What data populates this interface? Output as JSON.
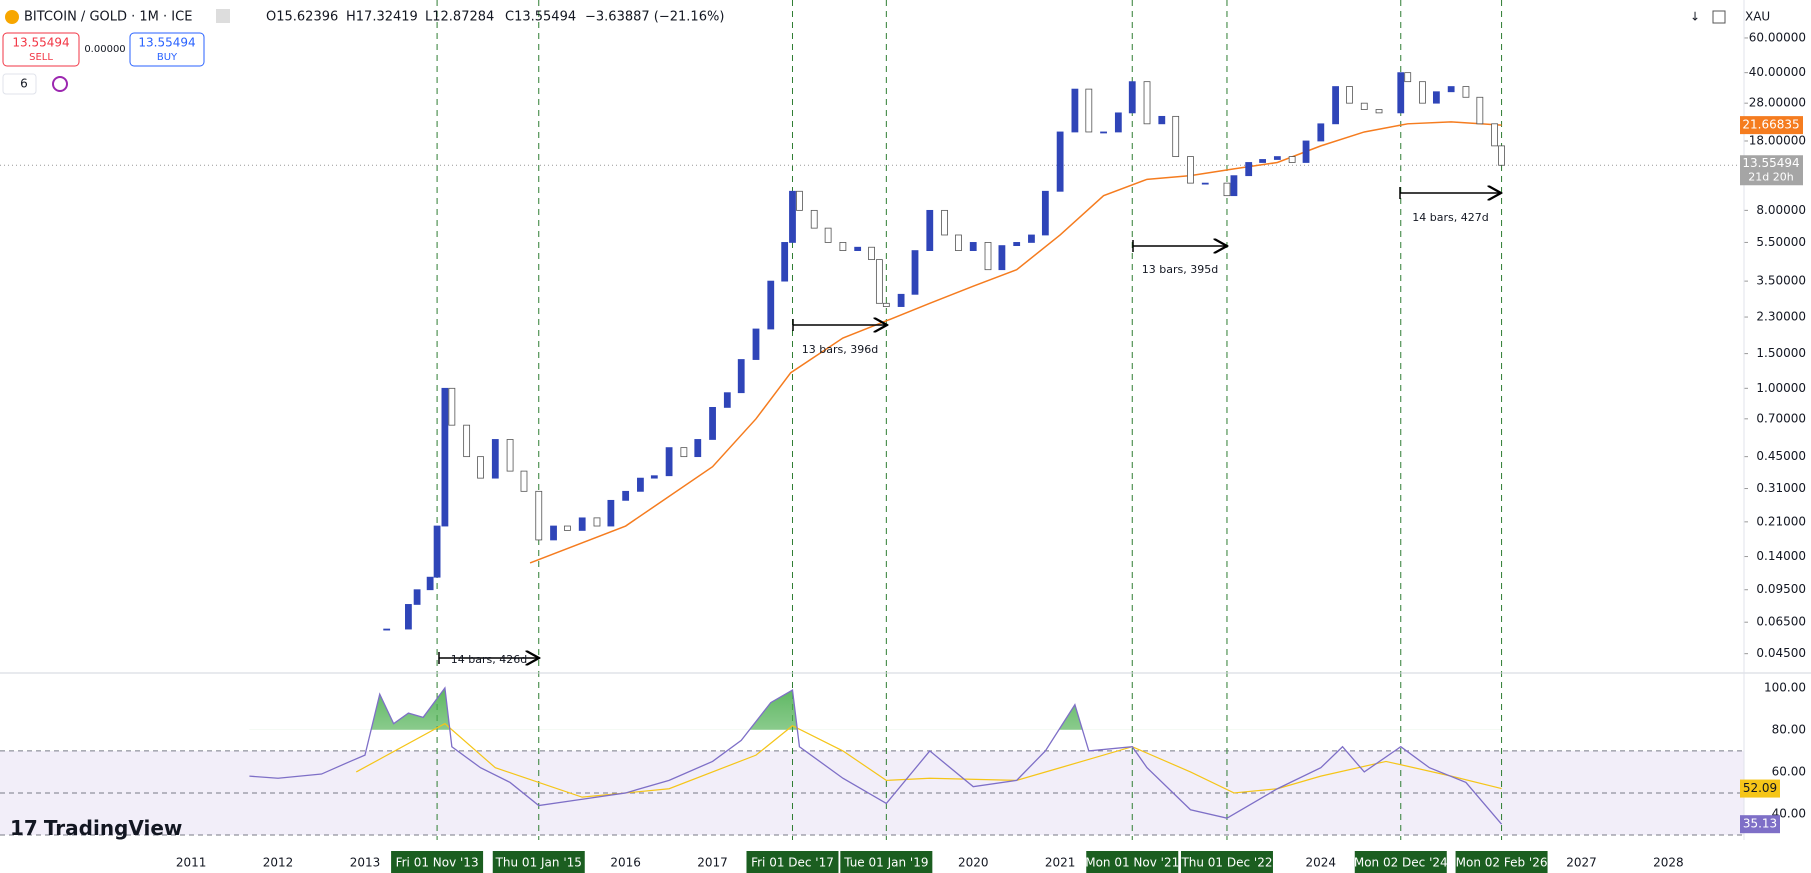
{
  "header": {
    "symbol": "BITCOIN / GOLD · 1M · ICE",
    "open": "O15.62396",
    "high": "H17.32419",
    "low": "L12.87284",
    "close": "C13.55494",
    "change": "−3.63887 (−21.16%)",
    "sell_price": "13.55494",
    "sell": "SELL",
    "spread": "0.00000",
    "buy_price": "13.55494",
    "buy": "BUY",
    "indicators": "6",
    "currency": "XAU",
    "logo": "TradingView"
  },
  "chart_data": {
    "type": "candlestick",
    "log": true,
    "xlim": [
      2008.8,
      2028.87
    ],
    "ylim": [
      0.0359,
      93.5
    ],
    "x": [
      2013.25,
      2013.5,
      2013.6,
      2013.75,
      2013.83,
      2013.92,
      2014.0,
      2014.17,
      2014.33,
      2014.5,
      2014.67,
      2014.83,
      2015.0,
      2015.17,
      2015.33,
      2015.5,
      2015.67,
      2015.83,
      2016.0,
      2016.17,
      2016.33,
      2016.5,
      2016.67,
      2016.83,
      2017.0,
      2017.17,
      2017.33,
      2017.5,
      2017.67,
      2017.83,
      2017.92,
      2018.0,
      2018.17,
      2018.33,
      2018.5,
      2018.67,
      2018.83,
      2018.92,
      2019.0,
      2019.17,
      2019.33,
      2019.5,
      2019.67,
      2019.83,
      2020.0,
      2020.17,
      2020.33,
      2020.5,
      2020.67,
      2020.83,
      2021.0,
      2021.17,
      2021.33,
      2021.5,
      2021.67,
      2021.83,
      2022.0,
      2022.17,
      2022.33,
      2022.5,
      2022.67,
      2022.92,
      2023.0,
      2023.17,
      2023.33,
      2023.5,
      2023.67,
      2023.83,
      2024.0,
      2024.17,
      2024.33,
      2024.5,
      2024.67,
      2024.92,
      2025.0,
      2025.17,
      2025.33,
      2025.5,
      2025.67,
      2025.83,
      2026.0,
      2026.08
    ],
    "values": [
      0.06,
      0.08,
      0.095,
      0.11,
      0.2,
      1.0,
      0.65,
      0.45,
      0.35,
      0.55,
      0.38,
      0.3,
      0.17,
      0.2,
      0.19,
      0.22,
      0.2,
      0.27,
      0.3,
      0.35,
      0.36,
      0.5,
      0.45,
      0.55,
      0.8,
      0.95,
      1.4,
      2.0,
      3.5,
      5.5,
      10.0,
      8.0,
      6.5,
      5.5,
      5.0,
      5.2,
      4.5,
      2.7,
      2.6,
      3.0,
      5.0,
      8.0,
      6.0,
      5.0,
      5.5,
      4.0,
      5.3,
      5.5,
      6.0,
      10.0,
      20.0,
      33.0,
      20.0,
      20.0,
      25.0,
      36.0,
      22.0,
      24.0,
      15.0,
      11.0,
      11.0,
      9.5,
      12.0,
      14.0,
      14.5,
      15.0,
      14.0,
      18.0,
      22.0,
      34.0,
      28.0,
      26.0,
      25.0,
      40.0,
      36.0,
      28.0,
      32.0,
      34.0,
      30.0,
      22.0,
      17.0,
      13.55494
    ],
    "up_color": "#2f45b8",
    "down_color": "#ffffff",
    "ma": {
      "color": "#f57c1f",
      "x": [
        2014.9,
        2016,
        2017,
        2017.5,
        2017.9,
        2018.5,
        2019,
        2019.5,
        2020,
        2020.5,
        2021,
        2021.5,
        2022,
        2022.5,
        2023,
        2023.5,
        2024,
        2024.5,
        2025,
        2025.5,
        2026.08
      ],
      "values": [
        0.13,
        0.2,
        0.4,
        0.7,
        1.2,
        1.8,
        2.2,
        2.7,
        3.3,
        4.0,
        6.0,
        9.5,
        11.5,
        12.0,
        13.0,
        14.0,
        17.0,
        20.0,
        22.0,
        22.5,
        21.66835
      ],
      "last_label": "21.66835"
    },
    "last_label": "13.55494",
    "countdown": "21d 20h",
    "yticks": [
      {
        "value": 60,
        "label": "60.00000"
      },
      {
        "value": 40,
        "label": "40.00000"
      },
      {
        "value": 28,
        "label": "28.00000"
      },
      {
        "value": 18,
        "label": "18.00000"
      },
      {
        "value": 8,
        "label": "8.00000"
      },
      {
        "value": 5.5,
        "label": "5.50000"
      },
      {
        "value": 3.5,
        "label": "3.50000"
      },
      {
        "value": 2.3,
        "label": "2.30000"
      },
      {
        "value": 1.5,
        "label": "1.50000"
      },
      {
        "value": 1,
        "label": "1.00000"
      },
      {
        "value": 0.7,
        "label": "0.70000"
      },
      {
        "value": 0.45,
        "label": "0.45000"
      },
      {
        "value": 0.31,
        "label": "0.31000"
      },
      {
        "value": 0.21,
        "label": "0.21000"
      },
      {
        "value": 0.14,
        "label": "0.14000"
      },
      {
        "value": 0.095,
        "label": "0.09500"
      },
      {
        "value": 0.065,
        "label": "0.06500"
      },
      {
        "value": 0.045,
        "label": "0.04500"
      }
    ],
    "xticks": [
      2011,
      2012,
      2013,
      2016,
      2017,
      2020,
      2021,
      2024,
      2027,
      2028
    ],
    "markers": [
      {
        "value": 2013.83,
        "label": "Fri 01 Nov '13"
      },
      {
        "value": 2015.0,
        "label": "Thu 01 Jan '15"
      },
      {
        "value": 2017.92,
        "label": "Fri 01 Dec '17"
      },
      {
        "value": 2019.0,
        "label": "Tue 01 Jan '19"
      },
      {
        "value": 2021.83,
        "label": "Mon 01 Nov '21"
      },
      {
        "value": 2022.92,
        "label": "Thu 01 Dec '22"
      },
      {
        "value": 2024.92,
        "label": "Mon 02 Dec '24"
      },
      {
        "value": 2026.08,
        "label": "Mon 02 Feb '26"
      }
    ],
    "annotations": [
      "14 bars, 426d",
      "13 bars, 396d",
      "13 bars, 395d",
      "14 bars, 427d"
    ],
    "rsi": {
      "ylim": [
        27.6,
        107.1
      ],
      "levels": [
        30,
        50,
        70
      ],
      "color": "#7e6fc7",
      "ma_color": "#f5c518",
      "x": [
        2011.67,
        2012.0,
        2012.5,
        2012.83,
        2013.0,
        2013.17,
        2013.33,
        2013.5,
        2013.67,
        2013.92,
        2014.0,
        2014.33,
        2014.67,
        2015.0,
        2015.5,
        2016.0,
        2016.5,
        2017.0,
        2017.33,
        2017.67,
        2017.92,
        2018.0,
        2018.5,
        2019.0,
        2019.5,
        2020.0,
        2020.5,
        2020.83,
        2021.17,
        2021.33,
        2021.83,
        2022.0,
        2022.5,
        2022.92,
        2023.5,
        2024.0,
        2024.25,
        2024.5,
        2024.92,
        2025.25,
        2025.67,
        2026.08
      ],
      "values": [
        58,
        57,
        59,
        65,
        68,
        97,
        83,
        88,
        86,
        100,
        72,
        62,
        55,
        44,
        47,
        50,
        56,
        65,
        75,
        93,
        99,
        72,
        57,
        45,
        70,
        53,
        56,
        70,
        92,
        70,
        72,
        62,
        42,
        38,
        52,
        62,
        72,
        60,
        72,
        62,
        55,
        35.13
      ],
      "ma_x": [
        2012.9,
        2013.92,
        2014.5,
        2015.5,
        2016.5,
        2017.5,
        2017.92,
        2018.5,
        2019.0,
        2019.5,
        2020.5,
        2021.0,
        2021.83,
        2022.5,
        2023.0,
        2023.5,
        2024.0,
        2024.75,
        2025.5,
        2026.08
      ],
      "ma_values": [
        60,
        83,
        62,
        48,
        52,
        68,
        82,
        70,
        56,
        57,
        56,
        62,
        72,
        60,
        50,
        52,
        58,
        65,
        58,
        52.09
      ],
      "yticks": [
        {
          "value": 100,
          "label": "100.00"
        },
        {
          "value": 80,
          "label": "80.00"
        },
        {
          "value": 60,
          "label": "60.00"
        },
        {
          "value": 40,
          "label": "40.00"
        }
      ],
      "fill_above": 80,
      "ma_label": "52.09",
      "last_label": "35.13"
    }
  }
}
